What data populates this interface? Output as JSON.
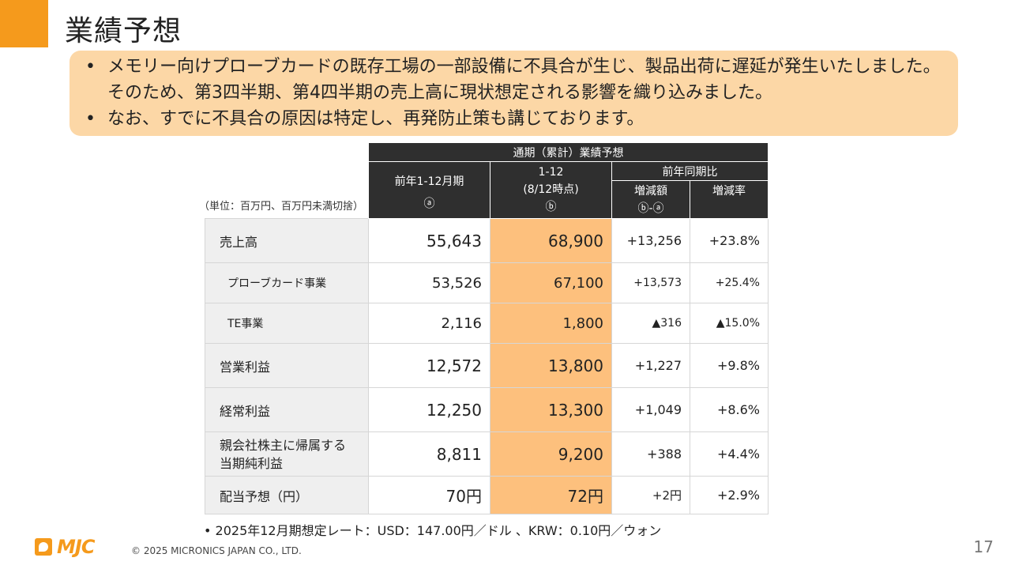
{
  "title": "業績予想",
  "bullets": [
    "メモリー向けプローブカードの既存工場の一部設備に不具合が生じ、製品出荷に遅延が発生いたしました。そのため、第3四半期、第4四半期の売上高に現状想定される影響を織り込みました。",
    "なお、すでに不具合の原因は特定し、再発防止策も講じております。"
  ],
  "table": {
    "unit_note": "（単位：百万円、百万円未満切捨）",
    "group_header": "通期（累計）業績予想",
    "col_prev": "前年1-12月期",
    "col_prev_mark": "ⓐ",
    "col_curr_line1": "1-12",
    "col_curr_line2": "(8/12時点)",
    "col_curr_mark": "ⓑ",
    "col_yoy": "前年同期比",
    "col_diff": "増減額",
    "col_diff_formula": "ⓑ-ⓐ",
    "col_rate": "増減率",
    "rows": [
      {
        "label": "売上高",
        "prev": "55,643",
        "curr": "68,900",
        "diff": "+13,256",
        "rate": "+23.8%"
      },
      {
        "label": "プローブカード事業",
        "prev": "53,526",
        "curr": "67,100",
        "diff": "+13,573",
        "rate": "+25.4%"
      },
      {
        "label": "TE事業",
        "prev": "2,116",
        "curr": "1,800",
        "diff": "▲316",
        "rate": "▲15.0%"
      },
      {
        "label": "営業利益",
        "prev": "12,572",
        "curr": "13,800",
        "diff": "+1,227",
        "rate": "+9.8%"
      },
      {
        "label": "経常利益",
        "prev": "12,250",
        "curr": "13,300",
        "diff": "+1,049",
        "rate": "+8.6%"
      },
      {
        "label_line1": "親会社株主に帰属する",
        "label_line2": "当期純利益",
        "prev": "8,811",
        "curr": "9,200",
        "diff": "+388",
        "rate": "+4.4%"
      },
      {
        "label": "配当予想（円）",
        "prev": "70円",
        "curr": "72円",
        "diff": "+2円",
        "rate": "+2.9%"
      }
    ]
  },
  "footnote": "• 2025年12月期想定レート：USD：147.00円／ドル 、KRW：0.10円／ウォン",
  "logo_text": "MJC",
  "copyright": "© 2025 MICRONICS JAPAN CO., LTD.",
  "page_number": "17",
  "colors": {
    "accent": "#f59a1c",
    "highlight": "#fdc07d",
    "bullet_bg": "#fcd7a6",
    "header_bg": "#2f2f2f"
  }
}
